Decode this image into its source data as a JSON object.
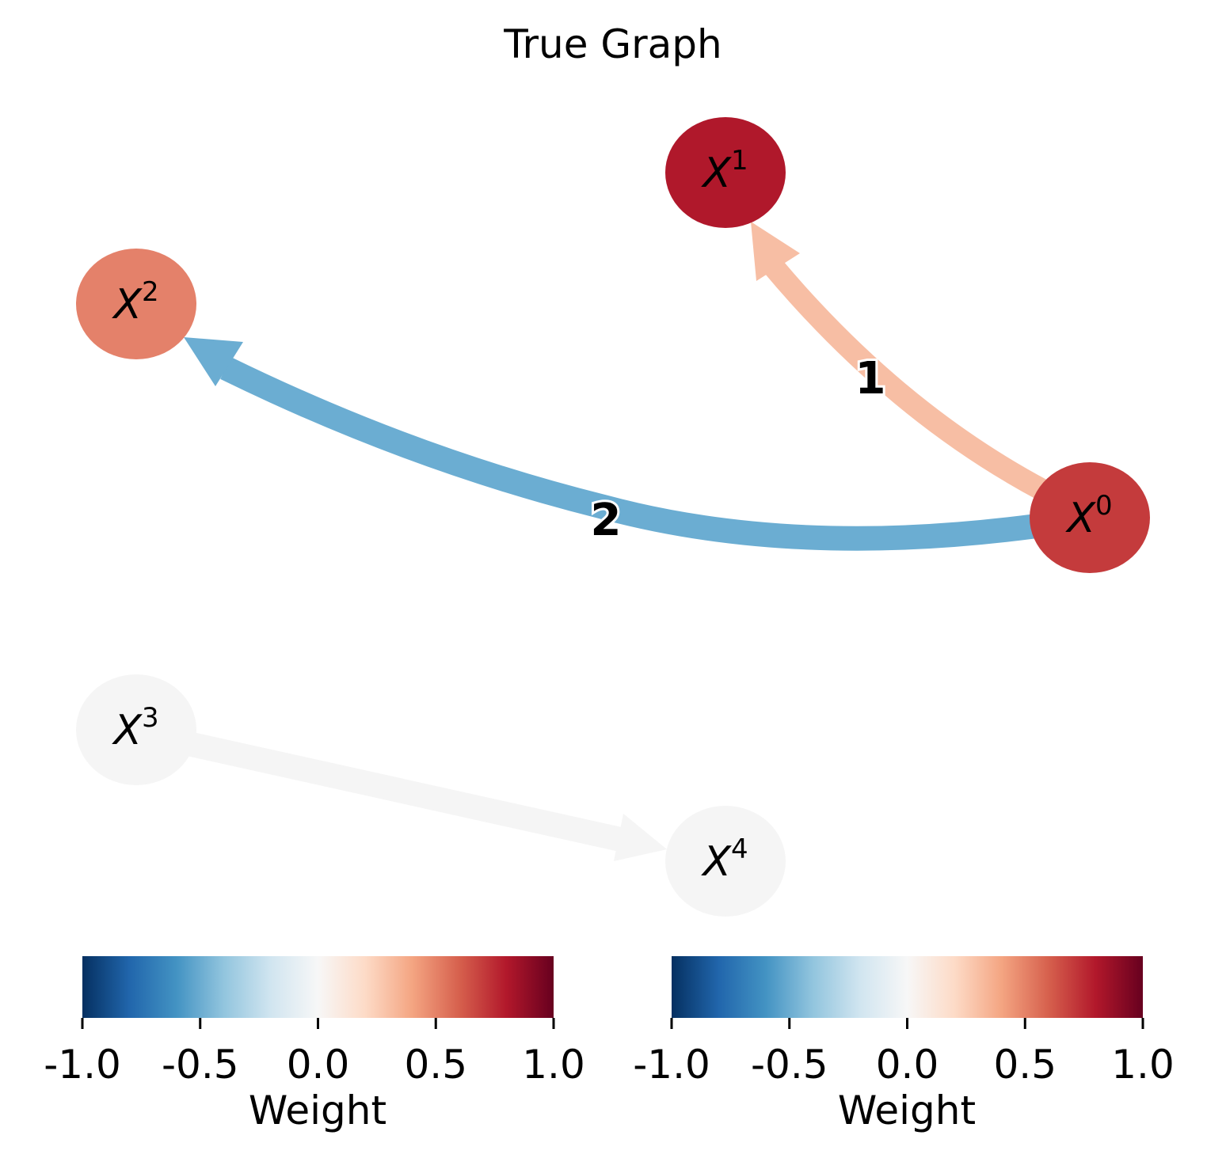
{
  "title": "True Graph",
  "colors": {
    "rdbu": [
      "#053061",
      "#2166ac",
      "#4393c3",
      "#92c5de",
      "#d1e5f0",
      "#f7f7f7",
      "#fddbc7",
      "#f4a582",
      "#d6604d",
      "#b2182b",
      "#67001f"
    ]
  },
  "nodes": [
    {
      "id": "x0",
      "base": "X",
      "sup": "0",
      "color": "#c43b3c"
    },
    {
      "id": "x1",
      "base": "X",
      "sup": "1",
      "color": "#b0182b"
    },
    {
      "id": "x2",
      "base": "X",
      "sup": "2",
      "color": "#e4816a"
    },
    {
      "id": "x3",
      "base": "X",
      "sup": "3",
      "color": "#f5f5f5"
    },
    {
      "id": "x4",
      "base": "X",
      "sup": "4",
      "color": "#f5f5f5"
    }
  ],
  "edges": [
    {
      "id": "e01",
      "from": "X0",
      "to": "X1",
      "label": "1",
      "color": "#f7bea4"
    },
    {
      "id": "e02",
      "from": "X0",
      "to": "X2",
      "label": "2",
      "color": "#6badd2"
    },
    {
      "id": "e34",
      "from": "X3",
      "to": "X4",
      "label": "",
      "color": "#f5f5f5"
    }
  ],
  "colorbars": [
    {
      "id": "left",
      "label": "Weight",
      "ticks": [
        "-1.0",
        "-0.5",
        "0.0",
        "0.5",
        "1.0"
      ]
    },
    {
      "id": "right",
      "label": "Weight",
      "ticks": [
        "-1.0",
        "-0.5",
        "0.0",
        "0.5",
        "1.0"
      ]
    }
  ]
}
